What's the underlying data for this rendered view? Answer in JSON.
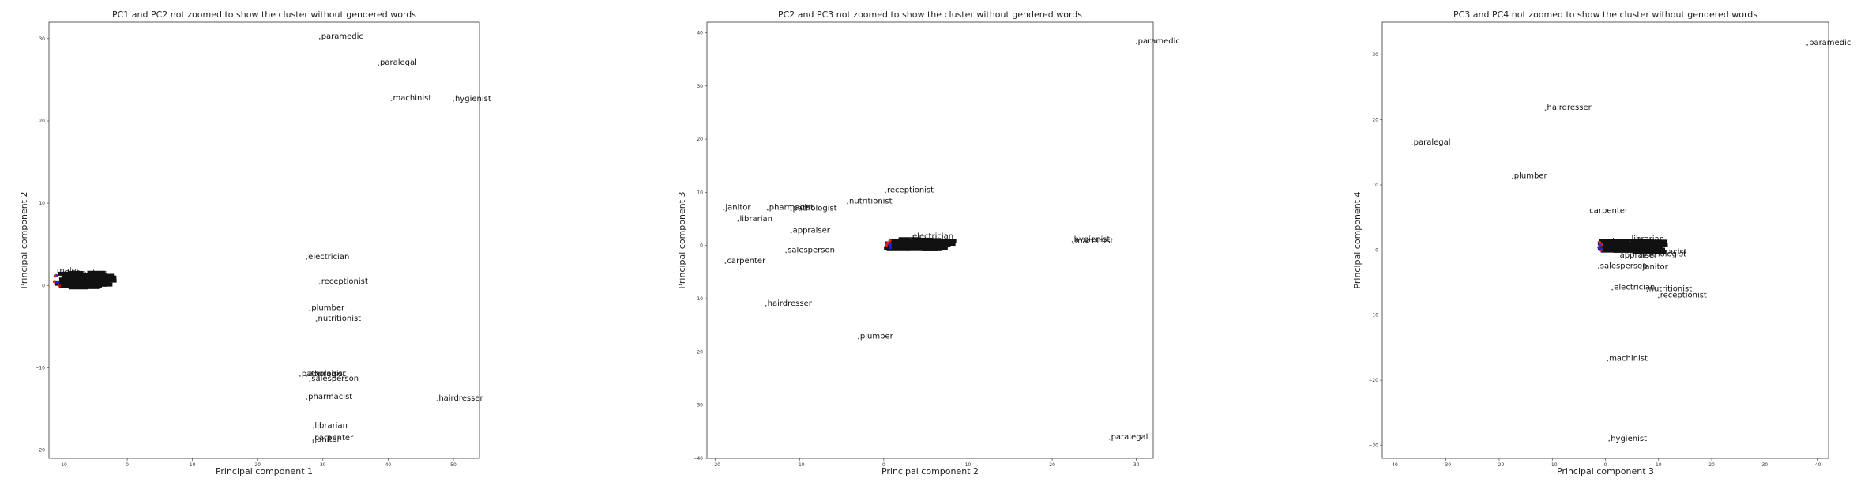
{
  "chart_data": [
    {
      "type": "scatter",
      "title": "PC1 and PC2 not zoomed to show the cluster without gendered words",
      "xlabel": "Principal component 1",
      "ylabel": "Principal component 2",
      "xlim": [
        -12,
        54
      ],
      "ylim": [
        -21,
        32
      ],
      "xticks": [
        -10,
        0,
        10,
        20,
        30,
        40,
        50
      ],
      "yticks": [
        -20,
        -10,
        0,
        10,
        20,
        30
      ],
      "xtick_labels": [
        "−10",
        "0",
        "10",
        "20",
        "30",
        "40",
        "50"
      ],
      "ytick_labels": [
        "−20",
        "−10",
        "0",
        "10",
        "20",
        "30"
      ],
      "points": [
        {
          "label": "paramedic",
          "x": 29.5,
          "y": 30.0
        },
        {
          "label": "paralegal",
          "x": 38.5,
          "y": 26.8
        },
        {
          "label": "machinist",
          "x": 40.5,
          "y": 22.5
        },
        {
          "label": "hygienist",
          "x": 50.0,
          "y": 22.4
        },
        {
          "label": "electrician",
          "x": 27.5,
          "y": 3.2
        },
        {
          "label": "receptionist",
          "x": 29.5,
          "y": 0.2
        },
        {
          "label": "plumber",
          "x": 28.0,
          "y": -3.0
        },
        {
          "label": "nutritionist",
          "x": 29.0,
          "y": -4.3
        },
        {
          "label": "pathologist",
          "x": 26.5,
          "y": -11.0
        },
        {
          "label": "appraiser",
          "x": 27.5,
          "y": -11.0
        },
        {
          "label": "salesperson",
          "x": 28.0,
          "y": -11.6
        },
        {
          "label": "pharmacist",
          "x": 27.5,
          "y": -13.8
        },
        {
          "label": "hairdresser",
          "x": 47.5,
          "y": -14.0
        },
        {
          "label": "librarian",
          "x": 28.5,
          "y": -17.3
        },
        {
          "label": "carpenter",
          "x": 28.5,
          "y": -18.8
        },
        {
          "label": "janitor",
          "x": 28.5,
          "y": -19.0
        }
      ],
      "cluster_labels": [
        {
          "label": "males",
          "x": -10.8,
          "y": 1.5
        },
        {
          "label": "stewardess",
          "x": -9.8,
          "y": 1.2
        },
        {
          "label": "housekeeper",
          "x": -10.5,
          "y": -0.1
        }
      ]
    },
    {
      "type": "scatter",
      "title": "PC2 and PC3 not zoomed to show the cluster without gendered words",
      "xlabel": "Principal component 2",
      "ylabel": "Principal component 3",
      "xlim": [
        -21,
        32
      ],
      "ylim": [
        -40,
        42
      ],
      "xticks": [
        -20,
        -10,
        0,
        10,
        20,
        30
      ],
      "yticks": [
        -40,
        -30,
        -20,
        -10,
        0,
        10,
        20,
        30,
        40
      ],
      "xtick_labels": [
        "−20",
        "−10",
        "0",
        "10",
        "20",
        "30"
      ],
      "ytick_labels": [
        "−40",
        "−30",
        "−20",
        "−10",
        "0",
        "10",
        "20",
        "30",
        "40"
      ],
      "points": [
        {
          "label": "paramedic",
          "x": 30.0,
          "y": 38.0
        },
        {
          "label": "receptionist",
          "x": 0.2,
          "y": 10.0
        },
        {
          "label": "nutritionist",
          "x": -4.3,
          "y": 7.9
        },
        {
          "label": "janitor",
          "x": -19.0,
          "y": 6.7
        },
        {
          "label": "pharmacist",
          "x": -13.8,
          "y": 6.7
        },
        {
          "label": "pathologist",
          "x": -11.0,
          "y": 6.6
        },
        {
          "label": "librarian",
          "x": -17.3,
          "y": 4.6
        },
        {
          "label": "appraiser",
          "x": -11.0,
          "y": 2.4
        },
        {
          "label": "electrician",
          "x": 3.2,
          "y": 1.3
        },
        {
          "label": "hygienist",
          "x": 22.4,
          "y": 0.7
        },
        {
          "label": "machinist",
          "x": 22.5,
          "y": 0.4
        },
        {
          "label": "salesperson",
          "x": -11.6,
          "y": -1.3
        },
        {
          "label": "carpenter",
          "x": -18.8,
          "y": -3.3
        },
        {
          "label": "hairdresser",
          "x": -14.0,
          "y": -11.3
        },
        {
          "label": "plumber",
          "x": -3.0,
          "y": -17.5
        },
        {
          "label": "paralegal",
          "x": 26.8,
          "y": -36.4
        }
      ],
      "cluster_labels": [
        {
          "label": "matriarch",
          "x": 1.5,
          "y": 0.2
        },
        {
          "label": "mother",
          "x": 1.0,
          "y": -0.8
        }
      ]
    },
    {
      "type": "scatter",
      "title": "PC3 and PC4 not zoomed to show the cluster without gendered words",
      "xlabel": "Principal component 3",
      "ylabel": "Principal component 4",
      "xlim": [
        -42,
        42
      ],
      "ylim": [
        -32,
        35
      ],
      "xticks": [
        -40,
        -30,
        -20,
        -10,
        0,
        10,
        20,
        30,
        40
      ],
      "yticks": [
        -30,
        -20,
        -10,
        0,
        10,
        20,
        30
      ],
      "xtick_labels": [
        "−40",
        "−30",
        "−20",
        "−10",
        "0",
        "10",
        "20",
        "30",
        "40"
      ],
      "ytick_labels": [
        "−30",
        "−20",
        "−10",
        "0",
        "10",
        "20",
        "30"
      ],
      "points": [
        {
          "label": "paramedic",
          "x": 38.0,
          "y": 31.5
        },
        {
          "label": "hairdresser",
          "x": -11.3,
          "y": 21.5
        },
        {
          "label": "paralegal",
          "x": -36.4,
          "y": 16.2
        },
        {
          "label": "plumber",
          "x": -17.5,
          "y": 11.0
        },
        {
          "label": "carpenter",
          "x": -3.3,
          "y": 5.7
        },
        {
          "label": "librarian",
          "x": 4.6,
          "y": 1.3
        },
        {
          "label": "pharmacist",
          "x": 6.7,
          "y": -0.7
        },
        {
          "label": "appraiser",
          "x": 2.4,
          "y": -1.2
        },
        {
          "label": "pathologist",
          "x": 6.6,
          "y": -1.0
        },
        {
          "label": "salesperson",
          "x": -1.3,
          "y": -2.8
        },
        {
          "label": "janitor",
          "x": 6.7,
          "y": -2.9
        },
        {
          "label": "electrician",
          "x": 1.3,
          "y": -6.1
        },
        {
          "label": "nutritionist",
          "x": 7.9,
          "y": -6.3
        },
        {
          "label": "receptionist",
          "x": 10.0,
          "y": -7.3
        },
        {
          "label": "machinist",
          "x": 0.4,
          "y": -17.0
        },
        {
          "label": "hygienist",
          "x": 0.7,
          "y": -29.3
        }
      ],
      "cluster_labels": [
        {
          "label": "stewardess",
          "x": 0.5,
          "y": 1.0
        }
      ]
    }
  ],
  "colors": {
    "cluster_main": "#111111",
    "cluster_accent_blue": "#2222dd",
    "cluster_accent_red": "#dd2222",
    "point": "#555555"
  }
}
